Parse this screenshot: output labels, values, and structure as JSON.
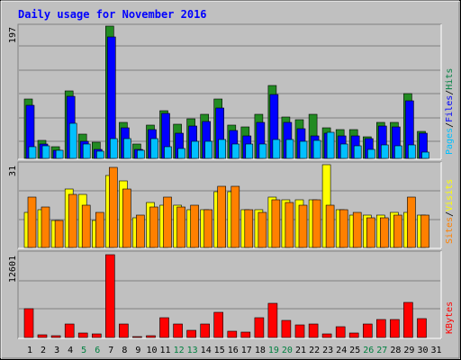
{
  "title": "Daily usage for November 2016",
  "colors": {
    "background": "#c0c0c0",
    "title": "#0000ff",
    "hits": "#228b22",
    "hits_label": "#008040",
    "files": "#0000ff",
    "pages": "#00c0ff",
    "visits": "#ffff00",
    "sites": "#ff8000",
    "kbytes": "#ff0000",
    "weekend_label": "#008040"
  },
  "chart_data": [
    {
      "type": "bar",
      "name": "hits-files-pages",
      "categories": [
        "1",
        "2",
        "3",
        "4",
        "5",
        "6",
        "7",
        "8",
        "9",
        "10",
        "11",
        "12",
        "13",
        "14",
        "15",
        "16",
        "17",
        "18",
        "19",
        "20",
        "21",
        "22",
        "23",
        "24",
        "25",
        "26",
        "27",
        "28",
        "29",
        "30",
        "31"
      ],
      "ymax_label": "197",
      "ylim": [
        0,
        197
      ],
      "series": [
        {
          "name": "Hits",
          "values": [
            88,
            27,
            17,
            100,
            36,
            24,
            197,
            53,
            21,
            49,
            71,
            51,
            59,
            65,
            88,
            49,
            47,
            66,
            109,
            61,
            57,
            66,
            45,
            43,
            43,
            32,
            54,
            54,
            96,
            40,
            0
          ]
        },
        {
          "name": "Files",
          "values": [
            79,
            22,
            12,
            92,
            26,
            14,
            181,
            46,
            14,
            43,
            67,
            37,
            48,
            55,
            75,
            41,
            34,
            53,
            95,
            54,
            44,
            33,
            37,
            33,
            33,
            30,
            48,
            47,
            86,
            38,
            0
          ]
        },
        {
          "name": "Pages",
          "values": [
            17,
            19,
            12,
            52,
            21,
            11,
            30,
            29,
            12,
            29,
            18,
            15,
            25,
            25,
            28,
            21,
            22,
            21,
            28,
            28,
            25,
            27,
            39,
            22,
            19,
            14,
            20,
            19,
            20,
            9,
            0
          ]
        }
      ],
      "axis_label": [
        "Pages",
        "/",
        "Files",
        "/",
        "Hits"
      ]
    },
    {
      "type": "bar",
      "name": "visits-sites",
      "ymax_label": "31",
      "ylim": [
        0,
        31
      ],
      "series": [
        {
          "name": "Visits",
          "values": [
            13,
            14,
            10,
            22,
            20,
            10,
            27,
            25,
            11,
            17,
            16,
            16,
            14,
            14,
            21,
            21,
            14,
            14,
            19,
            18,
            18,
            18,
            31,
            14,
            12,
            12,
            12,
            13,
            13,
            12,
            0
          ]
        },
        {
          "name": "Sites",
          "values": [
            19,
            15,
            10,
            20,
            16,
            13,
            30,
            22,
            12,
            15,
            19,
            15,
            16,
            14,
            23,
            23,
            14,
            13,
            18,
            17,
            16,
            18,
            16,
            14,
            13,
            11,
            11,
            12,
            19,
            12,
            0
          ]
        }
      ],
      "axis_label": [
        "Sites",
        "/",
        "Visits"
      ]
    },
    {
      "type": "bar",
      "name": "kbytes",
      "ymax_label": "12601",
      "ylim": [
        0,
        12601
      ],
      "series": [
        {
          "name": "KBytes",
          "values": [
            4400,
            400,
            260,
            2100,
            700,
            500,
            12601,
            2000,
            150,
            260,
            3000,
            2000,
            1100,
            2000,
            3900,
            900,
            800,
            3000,
            5200,
            2600,
            1900,
            2000,
            500,
            1700,
            700,
            2100,
            2700,
            2800,
            5400,
            2900,
            0
          ]
        }
      ],
      "axis_label": [
        "KBytes"
      ]
    }
  ],
  "x_labels": [
    "1",
    "2",
    "3",
    "4",
    "5",
    "6",
    "7",
    "8",
    "9",
    "10",
    "11",
    "12",
    "13",
    "14",
    "15",
    "16",
    "17",
    "18",
    "19",
    "20",
    "21",
    "22",
    "23",
    "24",
    "25",
    "26",
    "27",
    "28",
    "29",
    "30",
    "31"
  ],
  "weekend_days": [
    "5",
    "6",
    "12",
    "13",
    "19",
    "20",
    "26",
    "27"
  ]
}
